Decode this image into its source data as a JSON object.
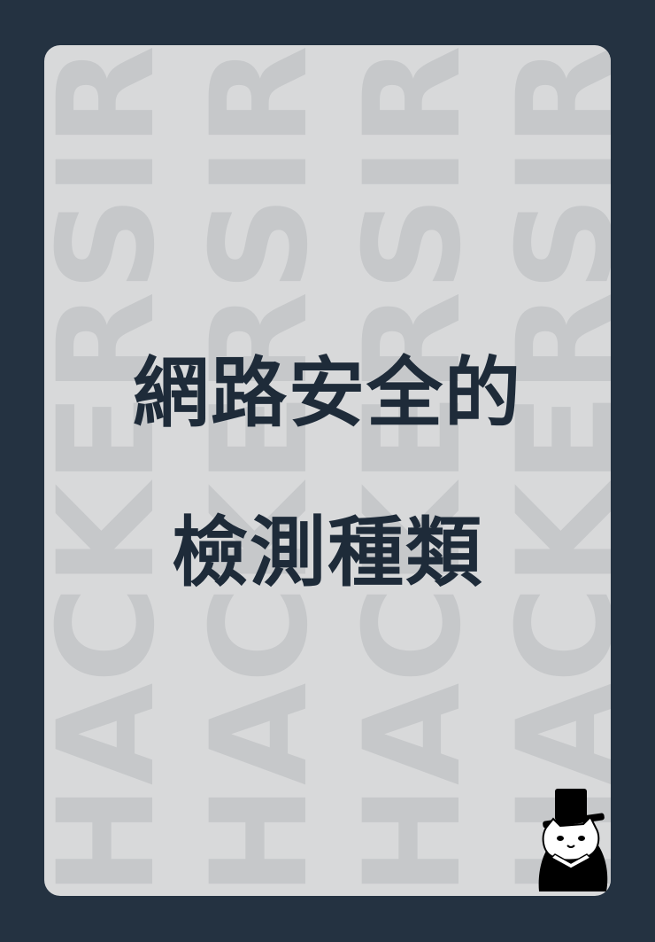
{
  "title": {
    "line1": "網路安全的",
    "line2": "檢測種類"
  },
  "watermark": {
    "text": "HACKERSIR",
    "columns": 4
  },
  "colors": {
    "background": "#243241",
    "card": "#d8d9da",
    "watermark": "#c6c8ca",
    "title": "#1e2b39"
  },
  "icons": {
    "mascot": "top-hat-cat-mascot-icon"
  }
}
